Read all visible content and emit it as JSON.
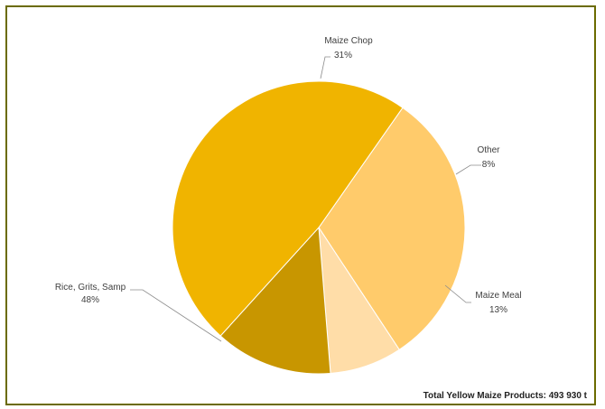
{
  "chart_data": {
    "type": "pie",
    "categories": [
      "Maize Chop",
      "Other",
      "Maize Meal",
      "Rice, Grits, Samp"
    ],
    "values": [
      31,
      8,
      13,
      48
    ],
    "value_labels": [
      "31%",
      "8%",
      "13%",
      "48%"
    ],
    "colors": [
      "#FFCB6B",
      "#FFDDA8",
      "#C89600",
      "#F0B400"
    ],
    "legend": "none",
    "annotation": "Total Yellow Maize Products: 493 930 t"
  }
}
